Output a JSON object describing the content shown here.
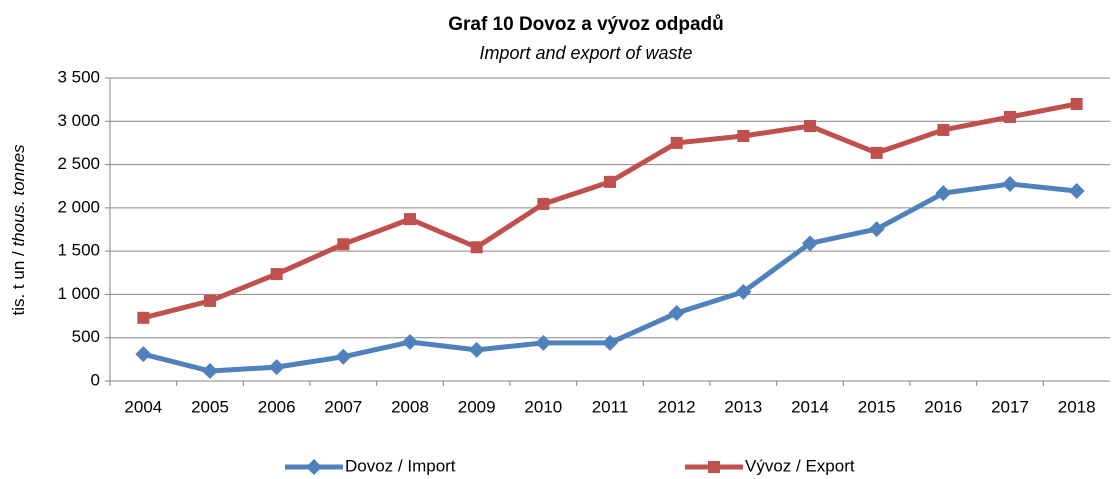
{
  "chart_data": {
    "type": "line",
    "title": "Graf 10 Dovoz a vývoz odpadů",
    "subtitle": "Import and export of waste",
    "y_label": {
      "cs": "tis. t un /",
      "en": "thous. tonnes"
    },
    "categories": [
      "2004",
      "2005",
      "2006",
      "2007",
      "2008",
      "2009",
      "2010",
      "2011",
      "2012",
      "2013",
      "2014",
      "2015",
      "2016",
      "2017",
      "2018"
    ],
    "series": [
      {
        "name": "Dovoz / Import",
        "color": "#4f81bd",
        "marker": "diamond",
        "values": [
          310,
          115,
          160,
          280,
          450,
          360,
          440,
          440,
          785,
          1030,
          1590,
          1755,
          2170,
          2275,
          2195
        ]
      },
      {
        "name": "Vývoz / Export",
        "color": "#c0504d",
        "marker": "square",
        "values": [
          730,
          925,
          1235,
          1580,
          1870,
          1545,
          2045,
          2300,
          2750,
          2830,
          2945,
          2635,
          2900,
          3050,
          3200
        ]
      }
    ],
    "ylim": [
      0,
      3500
    ],
    "yticks": [
      0,
      500,
      {
        "value": 1000,
        "label": "1 000"
      },
      {
        "value": 1500,
        "label": "1 500"
      },
      {
        "value": 2000,
        "label": "2 000"
      },
      {
        "value": 2500,
        "label": "2 500"
      },
      {
        "value": 3000,
        "label": "3 000"
      },
      {
        "value": 3500,
        "label": "3 500"
      }
    ],
    "grid": true,
    "legend": "bottom"
  }
}
